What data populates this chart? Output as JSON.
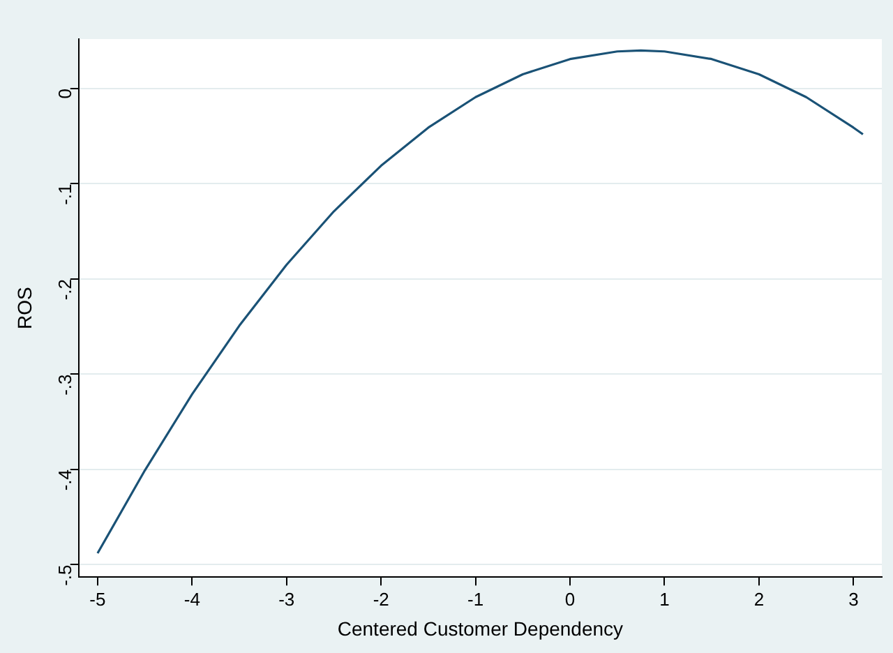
{
  "chart_data": {
    "type": "line",
    "xlabel": "Centered Customer Dependency",
    "ylabel": "ROS",
    "x": [
      -5,
      -4.5,
      -4,
      -3.5,
      -3,
      -2.5,
      -2,
      -1.5,
      -1,
      -0.5,
      0,
      0.5,
      0.75,
      1,
      1.5,
      2,
      2.5,
      3,
      3.1
    ],
    "series": [
      {
        "color": "#1a5276",
        "values": [
          -0.488,
          -0.401,
          -0.321,
          -0.249,
          -0.185,
          -0.129,
          -0.081,
          -0.041,
          -0.009,
          0.015,
          0.031,
          0.039,
          0.04,
          0.039,
          0.031,
          0.015,
          -0.009,
          -0.041,
          -0.048
        ]
      }
    ],
    "xlim": [
      -5.2,
      3.3
    ],
    "xticks": [
      -5,
      -4,
      -3,
      -2,
      -1,
      0,
      1,
      2,
      3
    ],
    "ylim": [
      -0.513,
      0.052
    ],
    "yticks": [
      {
        "value": -0.5,
        "label": "-.5"
      },
      {
        "value": -0.4,
        "label": "-.4"
      },
      {
        "value": -0.3,
        "label": "-.3"
      },
      {
        "value": -0.2,
        "label": "-.2"
      },
      {
        "value": -0.1,
        "label": "-.1"
      },
      {
        "value": 0,
        "label": "0"
      }
    ],
    "grid": "y",
    "legend": false,
    "marker": "none",
    "line_style": "solid"
  }
}
